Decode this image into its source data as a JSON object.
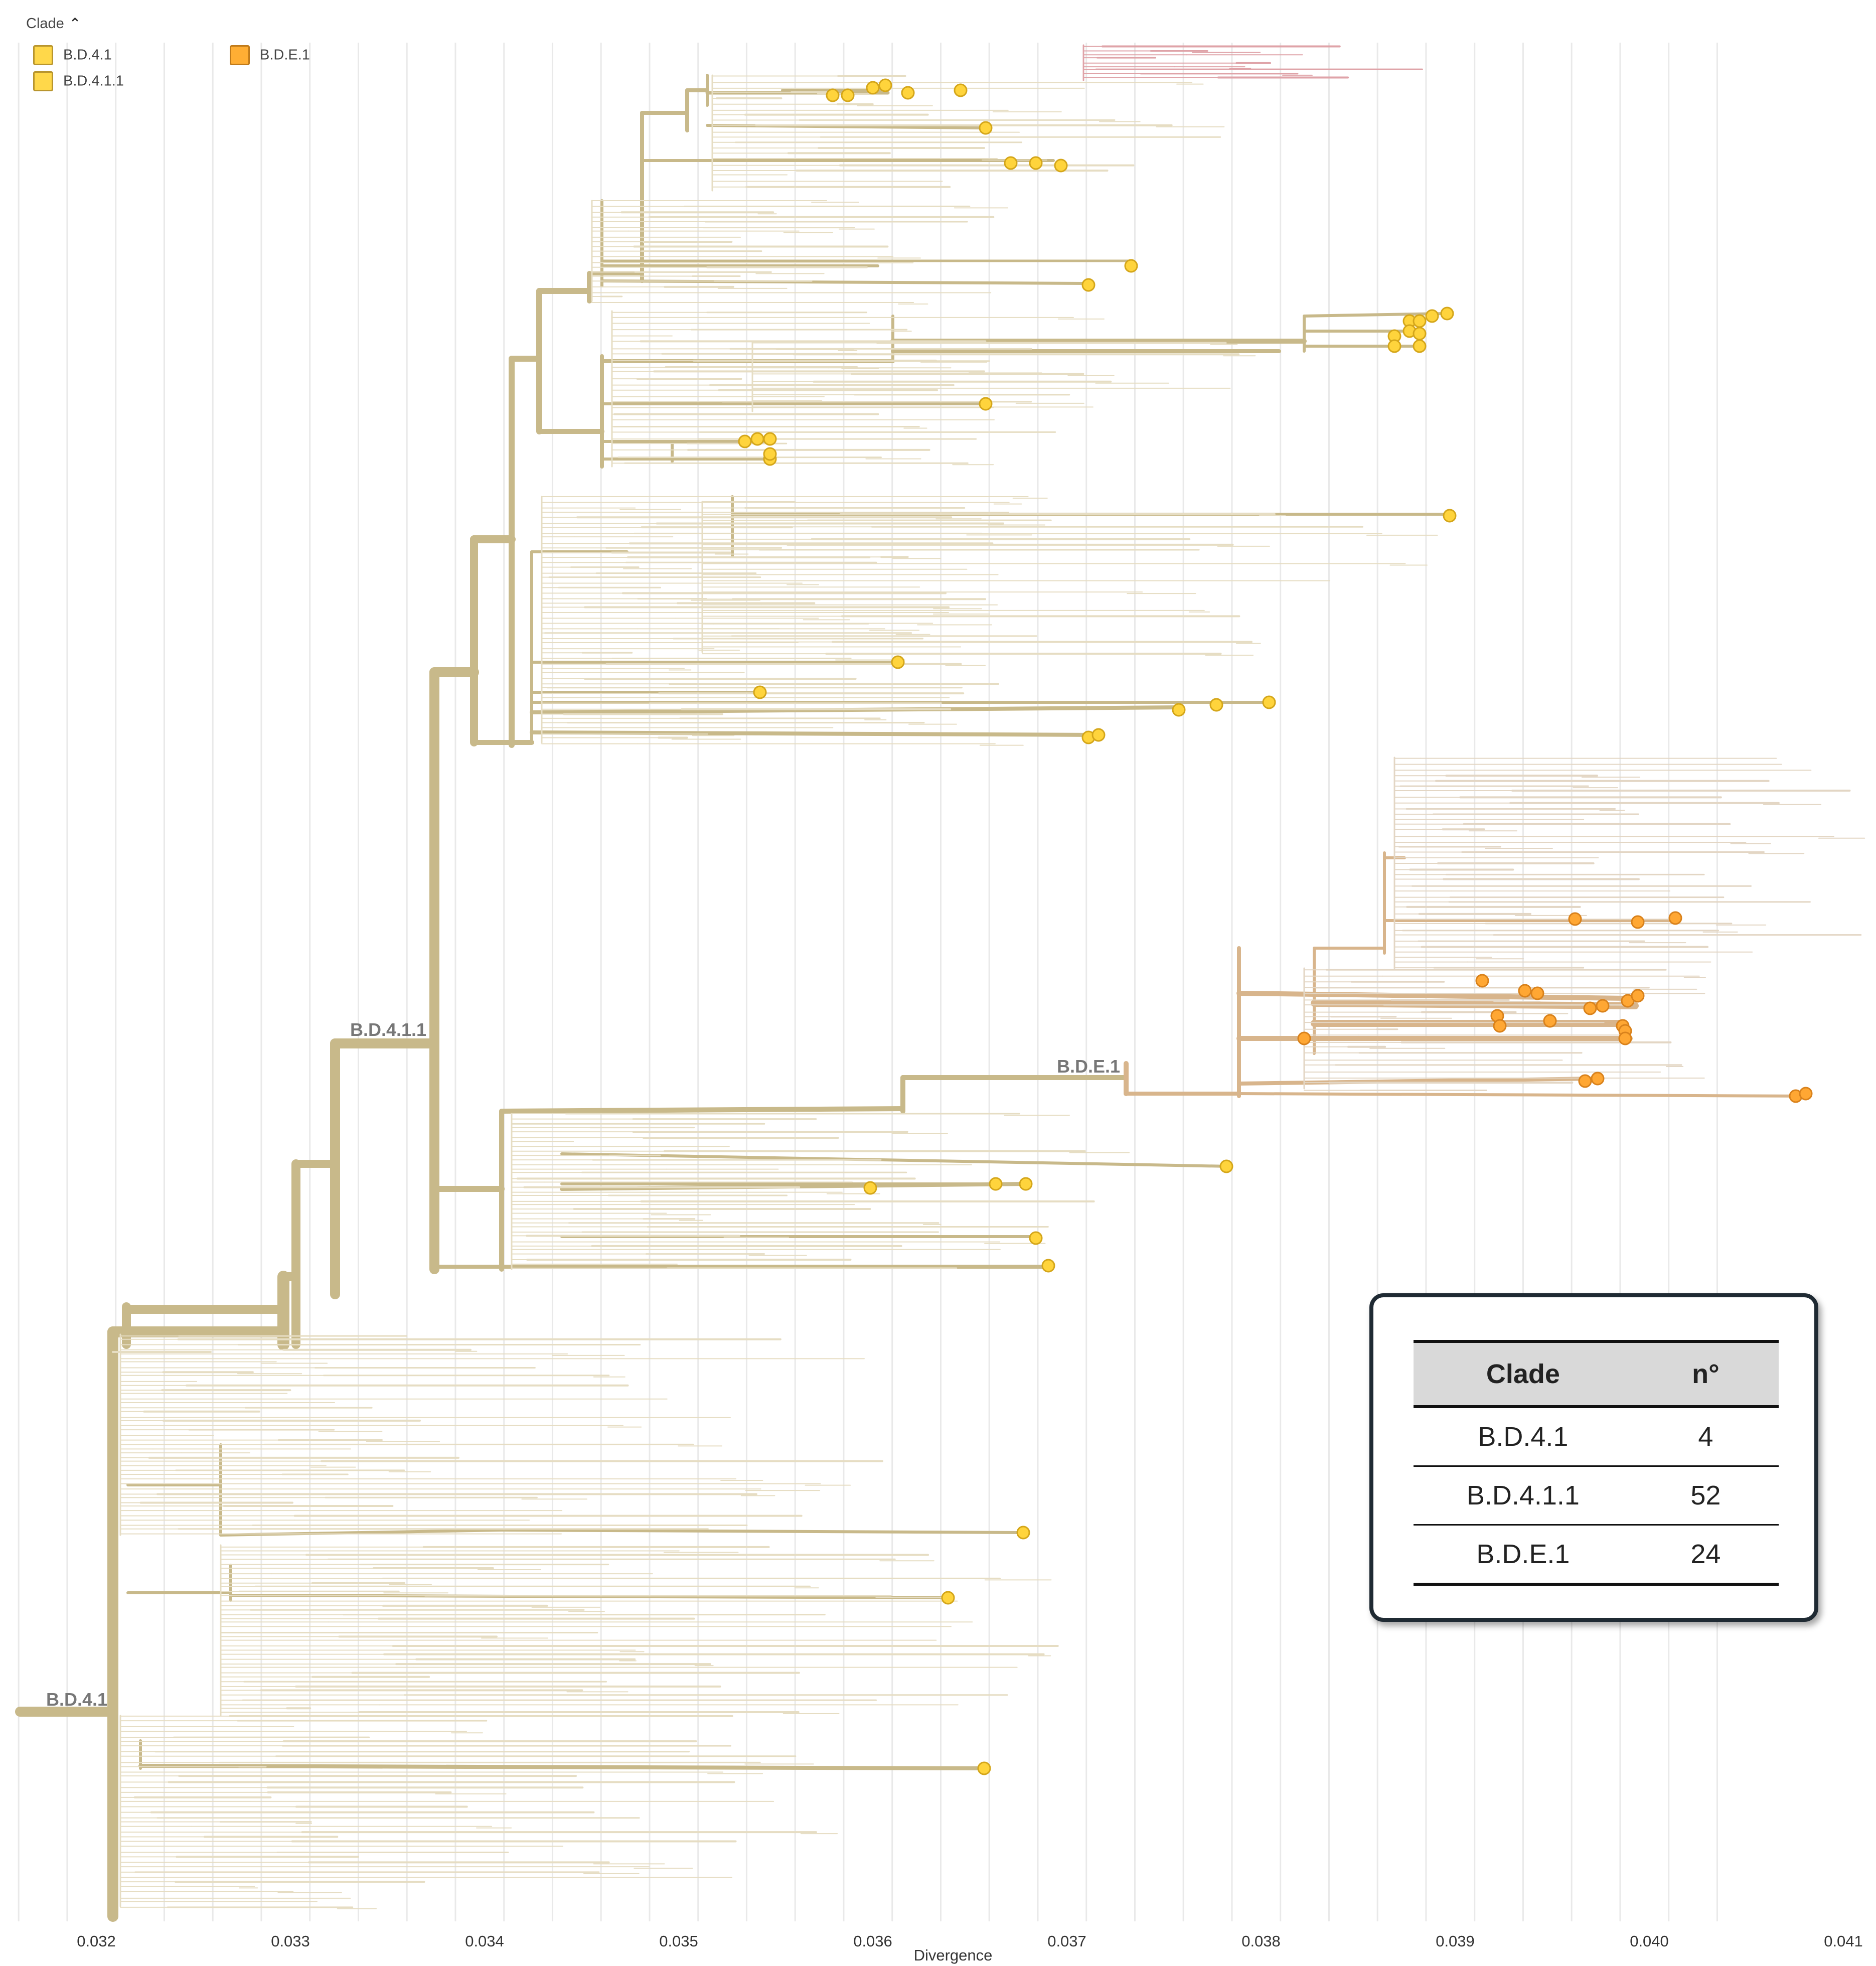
{
  "legend": {
    "title": "Clade",
    "items": [
      {
        "label": "B.D.4.1",
        "color": "#ffd84a"
      },
      {
        "label": "B.D.4.1.1",
        "color": "#ffd84a"
      },
      {
        "label": "B.D.E.1",
        "color": "#ffae34"
      }
    ]
  },
  "chart_data": {
    "type": "phylogenetic-tree",
    "xlabel": "Divergence",
    "xlim": [
      0.0316,
      0.0411
    ],
    "xticks": [
      "0.032",
      "0.033",
      "0.034",
      "0.035",
      "0.036",
      "0.037",
      "0.038",
      "0.039",
      "0.040",
      "0.041"
    ],
    "xtick_values": [
      0.032,
      0.033,
      0.034,
      0.035,
      0.036,
      0.037,
      0.038,
      0.039,
      0.04,
      0.041
    ],
    "clade_labels": [
      "B.D.4.1",
      "B.D.4.1.1",
      "B.D.E.1"
    ],
    "colors": {
      "branch": "#c8b98a",
      "branch_light": "#e6ddc3",
      "bde_branch": "#d8b58c",
      "outgroup": "#dfa3a8",
      "tip_bd41": "#ffd43c",
      "tip_bde1": "#ffa733",
      "grid": "#d6d6d6"
    }
  },
  "summary_table": {
    "headers": [
      "Clade",
      "n°"
    ],
    "rows": [
      {
        "clade": "B.D.4.1",
        "n": "4"
      },
      {
        "clade": "B.D.4.1.1",
        "n": "52"
      },
      {
        "clade": "B.D.E.1",
        "n": "24"
      }
    ]
  }
}
